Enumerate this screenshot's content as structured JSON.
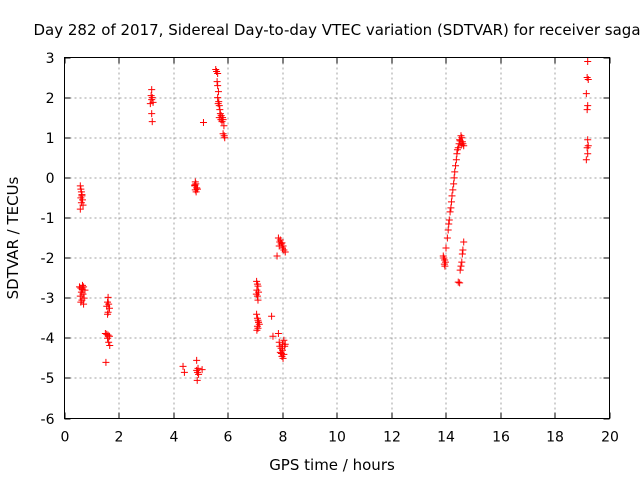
{
  "chart_data": {
    "type": "scatter",
    "title": "Day 282 of 2017, Sidereal Day-to-day VTEC variation (SDTVAR) for receiver saga",
    "xlabel": "GPS time / hours",
    "ylabel": "SDTVAR / TECUs",
    "xlim": [
      0,
      20
    ],
    "ylim": [
      -6,
      3
    ],
    "xticks": [
      0,
      2,
      4,
      6,
      8,
      10,
      12,
      14,
      16,
      18,
      20
    ],
    "yticks": [
      -6,
      -5,
      -4,
      -3,
      -2,
      -1,
      0,
      1,
      2,
      3
    ],
    "grid": true,
    "marker": "+",
    "marker_color": "#ff0000",
    "series": [
      {
        "name": "SDTVAR",
        "points": [
          [
            0.58,
            -0.2
          ],
          [
            0.6,
            -0.28
          ],
          [
            0.62,
            -0.35
          ],
          [
            0.64,
            -0.42
          ],
          [
            0.6,
            -0.5
          ],
          [
            0.66,
            -0.55
          ],
          [
            0.62,
            -0.62
          ],
          [
            0.68,
            -0.68
          ],
          [
            0.58,
            -0.78
          ],
          [
            0.64,
            -0.45
          ],
          [
            0.55,
            -2.72
          ],
          [
            0.6,
            -2.75
          ],
          [
            0.65,
            -2.78
          ],
          [
            0.7,
            -2.72
          ],
          [
            0.75,
            -2.8
          ],
          [
            0.62,
            -2.85
          ],
          [
            0.68,
            -2.9
          ],
          [
            0.58,
            -2.95
          ],
          [
            0.72,
            -3.0
          ],
          [
            0.64,
            -3.05
          ],
          [
            0.6,
            -3.1
          ],
          [
            0.7,
            -3.15
          ],
          [
            0.66,
            -2.68
          ],
          [
            1.6,
            -2.98
          ],
          [
            1.58,
            -3.1
          ],
          [
            1.62,
            -3.15
          ],
          [
            1.55,
            -3.2
          ],
          [
            1.65,
            -3.25
          ],
          [
            1.6,
            -3.35
          ],
          [
            1.58,
            -3.4
          ],
          [
            1.5,
            -3.88
          ],
          [
            1.55,
            -3.9
          ],
          [
            1.6,
            -3.92
          ],
          [
            1.65,
            -3.95
          ],
          [
            1.58,
            -4.0
          ],
          [
            1.62,
            -4.1
          ],
          [
            1.66,
            -4.18
          ],
          [
            1.52,
            -4.6
          ],
          [
            3.2,
            2.2
          ],
          [
            3.18,
            2.05
          ],
          [
            3.22,
            2.0
          ],
          [
            3.2,
            1.95
          ],
          [
            3.25,
            1.88
          ],
          [
            3.15,
            1.85
          ],
          [
            3.2,
            1.6
          ],
          [
            3.22,
            1.4
          ],
          [
            4.8,
            -0.1
          ],
          [
            4.82,
            -0.15
          ],
          [
            4.78,
            -0.2
          ],
          [
            4.85,
            -0.25
          ],
          [
            4.8,
            -0.3
          ],
          [
            4.88,
            -0.28
          ],
          [
            4.83,
            -0.35
          ],
          [
            4.78,
            -0.18
          ],
          [
            4.35,
            -4.7
          ],
          [
            4.4,
            -4.85
          ],
          [
            4.85,
            -4.55
          ],
          [
            4.9,
            -4.75
          ],
          [
            4.85,
            -4.8
          ],
          [
            4.88,
            -4.85
          ],
          [
            4.92,
            -4.9
          ],
          [
            4.87,
            -5.05
          ],
          [
            5.05,
            -4.78
          ],
          [
            5.1,
            1.38
          ],
          [
            5.55,
            2.7
          ],
          [
            5.58,
            2.65
          ],
          [
            5.62,
            2.6
          ],
          [
            5.6,
            2.4
          ],
          [
            5.62,
            2.3
          ],
          [
            5.65,
            2.15
          ],
          [
            5.62,
            2.0
          ],
          [
            5.66,
            1.9
          ],
          [
            5.68,
            1.8
          ],
          [
            5.64,
            1.85
          ],
          [
            5.7,
            1.7
          ],
          [
            5.72,
            1.6
          ],
          [
            5.68,
            1.5
          ],
          [
            5.74,
            1.45
          ],
          [
            5.78,
            1.4
          ],
          [
            5.75,
            1.55
          ],
          [
            5.8,
            1.5
          ],
          [
            5.82,
            1.45
          ],
          [
            5.85,
            1.3
          ],
          [
            5.82,
            1.1
          ],
          [
            5.86,
            1.05
          ],
          [
            5.88,
            1.0
          ],
          [
            7.05,
            -2.58
          ],
          [
            7.08,
            -2.65
          ],
          [
            7.1,
            -2.7
          ],
          [
            7.06,
            -2.8
          ],
          [
            7.12,
            -2.85
          ],
          [
            7.08,
            -2.95
          ],
          [
            7.1,
            -3.05
          ],
          [
            7.04,
            -2.9
          ],
          [
            7.05,
            -3.4
          ],
          [
            7.08,
            -3.5
          ],
          [
            7.1,
            -3.55
          ],
          [
            7.12,
            -3.6
          ],
          [
            7.15,
            -3.65
          ],
          [
            7.08,
            -3.7
          ],
          [
            7.1,
            -3.75
          ],
          [
            7.06,
            -3.8
          ],
          [
            7.12,
            -3.6
          ],
          [
            7.6,
            -3.45
          ],
          [
            7.65,
            -3.95
          ],
          [
            7.8,
            -1.95
          ],
          [
            7.85,
            -1.5
          ],
          [
            7.9,
            -1.6
          ],
          [
            7.95,
            -1.65
          ],
          [
            7.88,
            -1.7
          ],
          [
            8.0,
            -1.75
          ],
          [
            8.05,
            -1.8
          ],
          [
            8.1,
            -1.85
          ],
          [
            7.92,
            -1.55
          ],
          [
            7.98,
            -1.62
          ],
          [
            8.02,
            -1.7
          ],
          [
            7.85,
            -3.88
          ],
          [
            7.88,
            -4.1
          ],
          [
            7.9,
            -4.2
          ],
          [
            7.95,
            -4.25
          ],
          [
            8.0,
            -4.3
          ],
          [
            7.92,
            -4.35
          ],
          [
            8.05,
            -4.4
          ],
          [
            7.98,
            -4.45
          ],
          [
            8.02,
            -4.5
          ],
          [
            8.08,
            -4.2
          ],
          [
            8.1,
            -4.15
          ],
          [
            8.05,
            -4.05
          ],
          [
            7.96,
            -4.38
          ],
          [
            8.0,
            -4.15
          ],
          [
            13.9,
            -1.95
          ],
          [
            13.92,
            -2.0
          ],
          [
            13.95,
            -2.05
          ],
          [
            13.98,
            -2.1
          ],
          [
            13.94,
            -2.15
          ],
          [
            13.96,
            -2.2
          ],
          [
            14.0,
            -1.75
          ],
          [
            14.05,
            -1.5
          ],
          [
            14.08,
            -1.3
          ],
          [
            14.1,
            -1.15
          ],
          [
            14.12,
            -1.05
          ],
          [
            14.15,
            -0.85
          ],
          [
            14.18,
            -0.75
          ],
          [
            14.2,
            -0.6
          ],
          [
            14.22,
            -0.45
          ],
          [
            14.25,
            -0.3
          ],
          [
            14.28,
            -0.15
          ],
          [
            14.3,
            0.0
          ],
          [
            14.32,
            0.15
          ],
          [
            14.35,
            0.3
          ],
          [
            14.38,
            0.45
          ],
          [
            14.4,
            0.6
          ],
          [
            14.42,
            0.7
          ],
          [
            14.45,
            0.75
          ],
          [
            14.48,
            0.85
          ],
          [
            14.5,
            0.95
          ],
          [
            14.55,
            1.05
          ],
          [
            14.58,
            1.0
          ],
          [
            14.6,
            0.9
          ],
          [
            14.62,
            0.85
          ],
          [
            14.65,
            0.8
          ],
          [
            14.52,
            0.92
          ],
          [
            14.56,
            0.82
          ],
          [
            14.45,
            -2.6
          ],
          [
            14.5,
            -2.62
          ],
          [
            14.52,
            -2.3
          ],
          [
            14.55,
            -2.2
          ],
          [
            14.58,
            -2.1
          ],
          [
            14.6,
            -1.9
          ],
          [
            14.62,
            -1.8
          ],
          [
            14.65,
            -1.6
          ],
          [
            19.2,
            2.9
          ],
          [
            19.18,
            2.5
          ],
          [
            19.22,
            2.45
          ],
          [
            19.15,
            2.1
          ],
          [
            19.2,
            1.8
          ],
          [
            19.18,
            1.7
          ],
          [
            19.2,
            0.95
          ],
          [
            19.22,
            0.8
          ],
          [
            19.18,
            0.75
          ],
          [
            19.2,
            0.6
          ],
          [
            19.15,
            0.45
          ]
        ]
      }
    ]
  }
}
